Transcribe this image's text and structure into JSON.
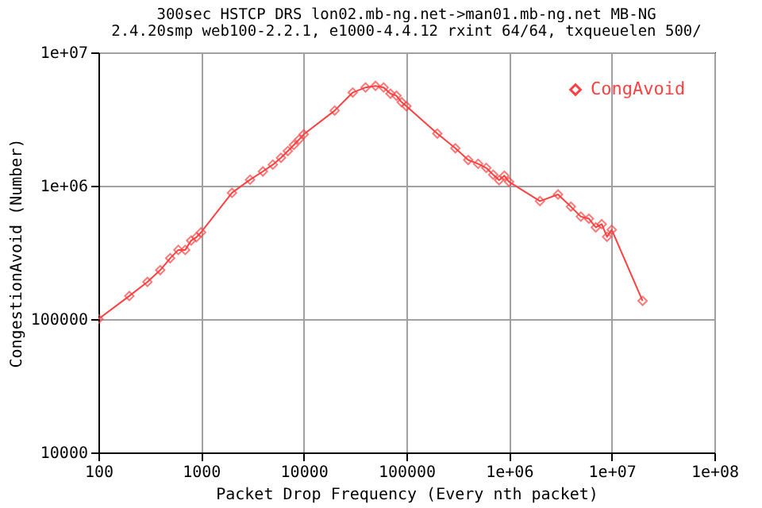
{
  "chart_data": {
    "type": "line",
    "title": "300sec HSTCP DRS lon02.mb-ng.net->man01.mb-ng.net MB-NG",
    "subtitle": "2.4.20smp web100-2.2.1, e1000-4.4.12 rxint 64/64, txqueuelen 500/",
    "xlabel": "Packet Drop Frequency (Every nth packet)",
    "ylabel": "CongestionAvoid (Number)",
    "log": "xy",
    "grid": true,
    "legend": "top right",
    "marker": "diamond",
    "line_style": "solid",
    "xlim": [
      100,
      100000000
    ],
    "xticks": [
      100,
      1000,
      10000,
      100000,
      {
        "value": 1000000,
        "label": "1e+06"
      },
      {
        "value": 10000000,
        "label": "1e+07"
      },
      {
        "value": 100000000,
        "label": "1e+08"
      }
    ],
    "ylim": [
      10000,
      10000000
    ],
    "yticks": [
      10000,
      100000,
      {
        "value": 1000000,
        "label": "1e+06"
      },
      {
        "value": 10000000,
        "label": "1e+07"
      }
    ],
    "x": [
      100,
      200,
      300,
      400,
      500,
      600,
      700,
      800,
      900,
      1000,
      2000,
      3000,
      4000,
      5000,
      6000,
      7000,
      8000,
      9000,
      10000,
      20000,
      30000,
      40000,
      50000,
      60000,
      70000,
      80000,
      90000,
      100000,
      200000,
      300000,
      400000,
      500000,
      600000,
      700000,
      800000,
      900000,
      1000000,
      2000000,
      3000000,
      4000000,
      5000000,
      6000000,
      7000000,
      8000000,
      9000000,
      10000000,
      20000000
    ],
    "series": [
      {
        "name": "CongAvoid",
        "color": "#ff4040",
        "values": [
          100000,
          149000,
          190000,
          233000,
          286000,
          330000,
          330000,
          388000,
          411000,
          447000,
          885000,
          1110000,
          1280000,
          1440000,
          1620000,
          1820000,
          2020000,
          2220000,
          2430000,
          3660000,
          5000000,
          5460000,
          5610000,
          5460000,
          4900000,
          4730000,
          4230000,
          3950000,
          2460000,
          1910000,
          1560000,
          1460000,
          1360000,
          1210000,
          1100000,
          1190000,
          1070000,
          767000,
          860000,
          697000,
          587000,
          566000,
          487000,
          515000,
          414000,
          468000,
          137000
        ]
      }
    ]
  }
}
